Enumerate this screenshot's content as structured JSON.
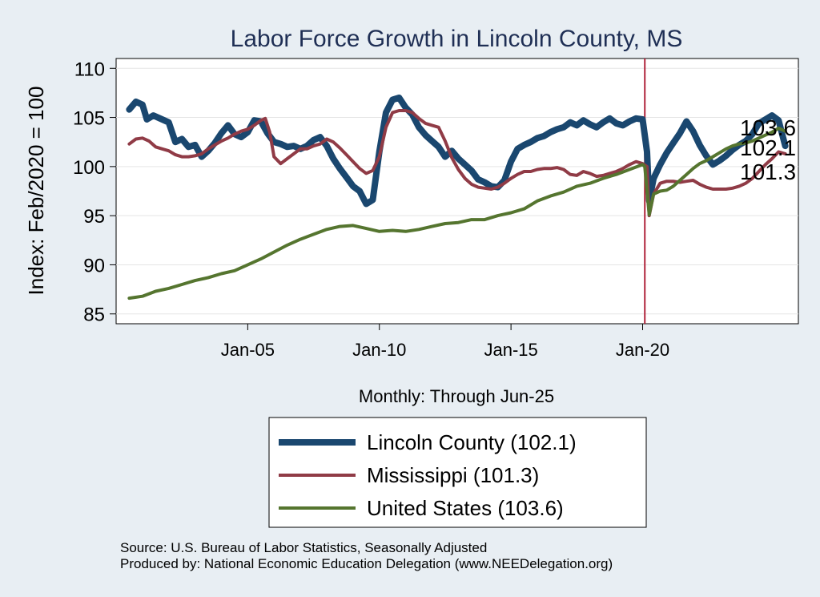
{
  "chart_data": {
    "type": "line",
    "title": "Labor Force Growth in Lincoln  County, MS",
    "ylabel": "Index: Feb/2020 = 100",
    "xnote": "Monthly: Through Jun-25",
    "ylim": [
      84,
      111
    ],
    "yticks": [
      "85",
      "90",
      "95",
      "100",
      "105",
      "110"
    ],
    "xlim": [
      "2000-01",
      "2025-12"
    ],
    "xticks": [
      {
        "date": "2005-01",
        "label": "Jan-05"
      },
      {
        "date": "2010-01",
        "label": "Jan-10"
      },
      {
        "date": "2015-01",
        "label": "Jan-15"
      },
      {
        "date": "2020-01",
        "label": "Jan-20"
      }
    ],
    "reference_line": {
      "date": "2020-02",
      "color": "#b0243b"
    },
    "grid": true,
    "legend_position": "bottom",
    "series": [
      {
        "name": "Lincoln  County (102.1)",
        "color": "#1a476f",
        "end_label": "102.1",
        "points": [
          [
            "2000-07",
            105.8
          ],
          [
            "2000-10",
            106.6
          ],
          [
            "2001-01",
            106.3
          ],
          [
            "2001-03",
            104.8
          ],
          [
            "2001-06",
            105.2
          ],
          [
            "2001-09",
            104.9
          ],
          [
            "2002-01",
            104.5
          ],
          [
            "2002-04",
            102.5
          ],
          [
            "2002-07",
            102.8
          ],
          [
            "2002-10",
            102.0
          ],
          [
            "2003-01",
            102.2
          ],
          [
            "2003-04",
            101.0
          ],
          [
            "2003-07",
            101.6
          ],
          [
            "2003-10",
            102.4
          ],
          [
            "2004-01",
            103.4
          ],
          [
            "2004-04",
            104.2
          ],
          [
            "2004-07",
            103.3
          ],
          [
            "2004-10",
            103.0
          ],
          [
            "2005-01",
            103.5
          ],
          [
            "2005-04",
            104.7
          ],
          [
            "2005-07",
            104.6
          ],
          [
            "2005-10",
            103.4
          ],
          [
            "2006-01",
            102.5
          ],
          [
            "2006-04",
            102.3
          ],
          [
            "2006-07",
            102.0
          ],
          [
            "2006-10",
            102.1
          ],
          [
            "2007-01",
            101.8
          ],
          [
            "2007-04",
            102.1
          ],
          [
            "2007-07",
            102.7
          ],
          [
            "2007-10",
            103.0
          ],
          [
            "2008-01",
            102.1
          ],
          [
            "2008-04",
            100.8
          ],
          [
            "2008-07",
            99.8
          ],
          [
            "2008-10",
            98.9
          ],
          [
            "2009-01",
            98.0
          ],
          [
            "2009-04",
            97.5
          ],
          [
            "2009-07",
            96.2
          ],
          [
            "2009-10",
            96.6
          ],
          [
            "2010-01",
            101.5
          ],
          [
            "2010-04",
            105.5
          ],
          [
            "2010-07",
            106.8
          ],
          [
            "2010-10",
            107.0
          ],
          [
            "2011-01",
            106.0
          ],
          [
            "2011-04",
            105.3
          ],
          [
            "2011-07",
            104.0
          ],
          [
            "2011-10",
            103.2
          ],
          [
            "2012-01",
            102.6
          ],
          [
            "2012-04",
            102.0
          ],
          [
            "2012-07",
            101.0
          ],
          [
            "2012-10",
            101.6
          ],
          [
            "2013-01",
            100.8
          ],
          [
            "2013-04",
            100.2
          ],
          [
            "2013-07",
            99.6
          ],
          [
            "2013-10",
            98.7
          ],
          [
            "2014-01",
            98.4
          ],
          [
            "2014-04",
            98.0
          ],
          [
            "2014-07",
            97.9
          ],
          [
            "2014-10",
            98.6
          ],
          [
            "2015-01",
            100.5
          ],
          [
            "2015-04",
            101.8
          ],
          [
            "2015-07",
            102.2
          ],
          [
            "2015-10",
            102.5
          ],
          [
            "2016-01",
            102.9
          ],
          [
            "2016-04",
            103.1
          ],
          [
            "2016-07",
            103.5
          ],
          [
            "2016-10",
            103.8
          ],
          [
            "2017-01",
            104.0
          ],
          [
            "2017-04",
            104.5
          ],
          [
            "2017-07",
            104.2
          ],
          [
            "2017-10",
            104.7
          ],
          [
            "2018-01",
            104.3
          ],
          [
            "2018-04",
            104.0
          ],
          [
            "2018-07",
            104.5
          ],
          [
            "2018-10",
            104.9
          ],
          [
            "2019-01",
            104.4
          ],
          [
            "2019-04",
            104.2
          ],
          [
            "2019-07",
            104.6
          ],
          [
            "2019-10",
            104.9
          ],
          [
            "2020-01",
            104.8
          ],
          [
            "2020-03",
            101.5
          ],
          [
            "2020-04",
            96.5
          ],
          [
            "2020-06",
            98.8
          ],
          [
            "2020-09",
            100.2
          ],
          [
            "2020-12",
            101.4
          ],
          [
            "2021-03",
            102.4
          ],
          [
            "2021-06",
            103.4
          ],
          [
            "2021-09",
            104.6
          ],
          [
            "2021-12",
            103.6
          ],
          [
            "2022-03",
            102.2
          ],
          [
            "2022-06",
            101.1
          ],
          [
            "2022-09",
            100.2
          ],
          [
            "2022-12",
            100.6
          ],
          [
            "2023-03",
            101.1
          ],
          [
            "2023-06",
            101.7
          ],
          [
            "2023-09",
            102.2
          ],
          [
            "2023-12",
            102.6
          ],
          [
            "2024-03",
            103.3
          ],
          [
            "2024-06",
            104.4
          ],
          [
            "2024-09",
            104.8
          ],
          [
            "2024-12",
            105.2
          ],
          [
            "2025-03",
            104.7
          ],
          [
            "2025-06",
            102.1
          ]
        ]
      },
      {
        "name": "Mississippi (101.3)",
        "color": "#903b46",
        "end_label": "101.3",
        "points": [
          [
            "2000-07",
            102.3
          ],
          [
            "2000-10",
            102.8
          ],
          [
            "2001-01",
            102.9
          ],
          [
            "2001-04",
            102.6
          ],
          [
            "2001-07",
            102.0
          ],
          [
            "2001-10",
            101.8
          ],
          [
            "2002-01",
            101.6
          ],
          [
            "2002-04",
            101.2
          ],
          [
            "2002-07",
            101.0
          ],
          [
            "2002-10",
            101.0
          ],
          [
            "2003-01",
            101.1
          ],
          [
            "2003-04",
            101.3
          ],
          [
            "2003-07",
            101.8
          ],
          [
            "2003-10",
            102.2
          ],
          [
            "2004-01",
            102.6
          ],
          [
            "2004-04",
            102.9
          ],
          [
            "2004-07",
            103.3
          ],
          [
            "2004-10",
            103.6
          ],
          [
            "2005-01",
            103.8
          ],
          [
            "2005-04",
            104.2
          ],
          [
            "2005-07",
            104.7
          ],
          [
            "2005-09",
            104.9
          ],
          [
            "2005-11",
            103.5
          ],
          [
            "2006-01",
            101.0
          ],
          [
            "2006-04",
            100.3
          ],
          [
            "2006-07",
            100.8
          ],
          [
            "2006-10",
            101.3
          ],
          [
            "2007-01",
            101.8
          ],
          [
            "2007-04",
            101.8
          ],
          [
            "2007-07",
            102.1
          ],
          [
            "2007-10",
            102.3
          ],
          [
            "2008-01",
            102.8
          ],
          [
            "2008-04",
            102.5
          ],
          [
            "2008-07",
            101.9
          ],
          [
            "2008-10",
            101.2
          ],
          [
            "2009-01",
            100.5
          ],
          [
            "2009-04",
            99.8
          ],
          [
            "2009-07",
            99.3
          ],
          [
            "2009-10",
            99.6
          ],
          [
            "2010-01",
            101.0
          ],
          [
            "2010-04",
            104.0
          ],
          [
            "2010-07",
            105.5
          ],
          [
            "2010-10",
            105.7
          ],
          [
            "2011-01",
            105.7
          ],
          [
            "2011-04",
            105.5
          ],
          [
            "2011-07",
            104.9
          ],
          [
            "2011-10",
            104.4
          ],
          [
            "2012-01",
            104.2
          ],
          [
            "2012-04",
            104.0
          ],
          [
            "2012-07",
            102.6
          ],
          [
            "2012-10",
            100.9
          ],
          [
            "2013-01",
            99.7
          ],
          [
            "2013-04",
            98.8
          ],
          [
            "2013-07",
            98.2
          ],
          [
            "2013-10",
            97.9
          ],
          [
            "2014-01",
            97.8
          ],
          [
            "2014-04",
            97.7
          ],
          [
            "2014-07",
            97.9
          ],
          [
            "2014-10",
            98.3
          ],
          [
            "2015-01",
            98.8
          ],
          [
            "2015-04",
            99.2
          ],
          [
            "2015-07",
            99.5
          ],
          [
            "2015-10",
            99.5
          ],
          [
            "2016-01",
            99.7
          ],
          [
            "2016-04",
            99.8
          ],
          [
            "2016-07",
            99.8
          ],
          [
            "2016-10",
            99.9
          ],
          [
            "2017-01",
            99.7
          ],
          [
            "2017-04",
            99.2
          ],
          [
            "2017-07",
            99.1
          ],
          [
            "2017-10",
            99.5
          ],
          [
            "2018-01",
            99.3
          ],
          [
            "2018-04",
            99.0
          ],
          [
            "2018-07",
            99.1
          ],
          [
            "2018-10",
            99.3
          ],
          [
            "2019-01",
            99.5
          ],
          [
            "2019-04",
            99.8
          ],
          [
            "2019-07",
            100.2
          ],
          [
            "2019-10",
            100.5
          ],
          [
            "2020-01",
            100.3
          ],
          [
            "2020-03",
            100.0
          ],
          [
            "2020-04",
            95.0
          ],
          [
            "2020-06",
            97.2
          ],
          [
            "2020-09",
            98.3
          ],
          [
            "2020-12",
            98.5
          ],
          [
            "2021-03",
            98.5
          ],
          [
            "2021-06",
            98.4
          ],
          [
            "2021-09",
            98.5
          ],
          [
            "2021-12",
            98.6
          ],
          [
            "2022-03",
            98.2
          ],
          [
            "2022-06",
            97.9
          ],
          [
            "2022-09",
            97.7
          ],
          [
            "2022-12",
            97.7
          ],
          [
            "2023-03",
            97.7
          ],
          [
            "2023-06",
            97.8
          ],
          [
            "2023-09",
            98.0
          ],
          [
            "2023-12",
            98.3
          ],
          [
            "2024-03",
            98.8
          ],
          [
            "2024-06",
            99.5
          ],
          [
            "2024-09",
            100.2
          ],
          [
            "2024-12",
            100.8
          ],
          [
            "2025-03",
            101.5
          ],
          [
            "2025-06",
            101.3
          ]
        ]
      },
      {
        "name": "United States (103.6)",
        "color": "#55752f",
        "end_label": "103.6",
        "points": [
          [
            "2000-07",
            86.6
          ],
          [
            "2001-01",
            86.8
          ],
          [
            "2001-07",
            87.3
          ],
          [
            "2002-01",
            87.6
          ],
          [
            "2002-07",
            88.0
          ],
          [
            "2003-01",
            88.4
          ],
          [
            "2003-07",
            88.7
          ],
          [
            "2004-01",
            89.1
          ],
          [
            "2004-07",
            89.4
          ],
          [
            "2005-01",
            90.0
          ],
          [
            "2005-07",
            90.6
          ],
          [
            "2006-01",
            91.3
          ],
          [
            "2006-07",
            92.0
          ],
          [
            "2007-01",
            92.6
          ],
          [
            "2007-07",
            93.1
          ],
          [
            "2008-01",
            93.6
          ],
          [
            "2008-07",
            93.9
          ],
          [
            "2009-01",
            94.0
          ],
          [
            "2009-07",
            93.7
          ],
          [
            "2010-01",
            93.4
          ],
          [
            "2010-07",
            93.5
          ],
          [
            "2011-01",
            93.4
          ],
          [
            "2011-07",
            93.6
          ],
          [
            "2012-01",
            93.9
          ],
          [
            "2012-07",
            94.2
          ],
          [
            "2013-01",
            94.3
          ],
          [
            "2013-07",
            94.6
          ],
          [
            "2014-01",
            94.6
          ],
          [
            "2014-07",
            95.0
          ],
          [
            "2015-01",
            95.3
          ],
          [
            "2015-07",
            95.7
          ],
          [
            "2016-01",
            96.5
          ],
          [
            "2016-07",
            97.0
          ],
          [
            "2017-01",
            97.4
          ],
          [
            "2017-07",
            98.0
          ],
          [
            "2018-01",
            98.3
          ],
          [
            "2018-07",
            98.8
          ],
          [
            "2019-01",
            99.2
          ],
          [
            "2019-07",
            99.7
          ],
          [
            "2020-01",
            100.2
          ],
          [
            "2020-02",
            100.0
          ],
          [
            "2020-04",
            95.1
          ],
          [
            "2020-06",
            97.2
          ],
          [
            "2020-09",
            97.5
          ],
          [
            "2020-12",
            97.6
          ],
          [
            "2021-03",
            98.0
          ],
          [
            "2021-06",
            98.6
          ],
          [
            "2021-09",
            99.2
          ],
          [
            "2021-12",
            99.8
          ],
          [
            "2022-03",
            100.3
          ],
          [
            "2022-06",
            100.6
          ],
          [
            "2022-09",
            101.0
          ],
          [
            "2022-12",
            101.4
          ],
          [
            "2023-03",
            101.8
          ],
          [
            "2023-06",
            102.1
          ],
          [
            "2023-09",
            102.3
          ],
          [
            "2023-12",
            102.4
          ],
          [
            "2024-03",
            102.6
          ],
          [
            "2024-06",
            102.9
          ],
          [
            "2024-09",
            103.2
          ],
          [
            "2024-12",
            103.5
          ],
          [
            "2025-03",
            103.9
          ],
          [
            "2025-06",
            103.6
          ]
        ]
      }
    ]
  },
  "source_lines": [
    "Source: U.S. Bureau of Labor Statistics, Seasonally Adjusted",
    "Produced by: National Economic Education Delegation (www.NEEDelegation.org)"
  ]
}
